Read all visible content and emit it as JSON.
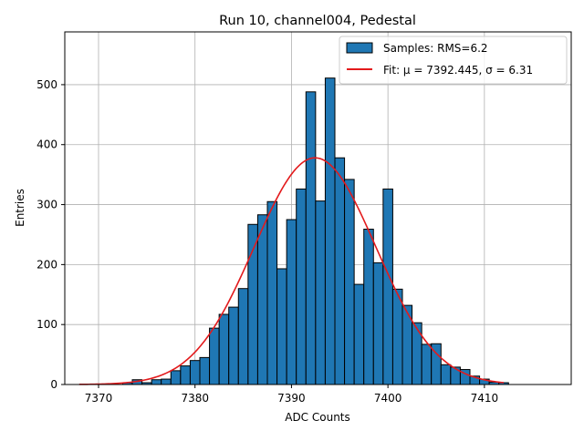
{
  "chart_data": {
    "type": "bar",
    "title": "Run 10, channel004, Pedestal",
    "xlabel": "ADC Counts",
    "ylabel": "Entries",
    "xlim": [
      7366.5,
      7419
    ],
    "ylim": [
      0,
      588
    ],
    "xticks": [
      7370,
      7380,
      7390,
      7400,
      7410
    ],
    "yticks": [
      0,
      100,
      200,
      300,
      400,
      500
    ],
    "grid": true,
    "legend_position": "upper-right",
    "bin_width": 1,
    "histogram": {
      "name": "Samples: RMS=6.2",
      "color": "#1f77b4",
      "bins": [
        {
          "x": 7373,
          "y": 3
        },
        {
          "x": 7374,
          "y": 8
        },
        {
          "x": 7375,
          "y": 3
        },
        {
          "x": 7376,
          "y": 8
        },
        {
          "x": 7377,
          "y": 9
        },
        {
          "x": 7378,
          "y": 23
        },
        {
          "x": 7379,
          "y": 31
        },
        {
          "x": 7380,
          "y": 40
        },
        {
          "x": 7381,
          "y": 45
        },
        {
          "x": 7382,
          "y": 94
        },
        {
          "x": 7383,
          "y": 117
        },
        {
          "x": 7384,
          "y": 129
        },
        {
          "x": 7385,
          "y": 160
        },
        {
          "x": 7386,
          "y": 267
        },
        {
          "x": 7387,
          "y": 283
        },
        {
          "x": 7388,
          "y": 305
        },
        {
          "x": 7389,
          "y": 193
        },
        {
          "x": 7390,
          "y": 275
        },
        {
          "x": 7391,
          "y": 326
        },
        {
          "x": 7392,
          "y": 488
        },
        {
          "x": 7393,
          "y": 306
        },
        {
          "x": 7394,
          "y": 511
        },
        {
          "x": 7395,
          "y": 378
        },
        {
          "x": 7396,
          "y": 342
        },
        {
          "x": 7397,
          "y": 167
        },
        {
          "x": 7398,
          "y": 259
        },
        {
          "x": 7399,
          "y": 203
        },
        {
          "x": 7400,
          "y": 326
        },
        {
          "x": 7401,
          "y": 159
        },
        {
          "x": 7402,
          "y": 132
        },
        {
          "x": 7403,
          "y": 103
        },
        {
          "x": 7404,
          "y": 67
        },
        {
          "x": 7405,
          "y": 68
        },
        {
          "x": 7406,
          "y": 33
        },
        {
          "x": 7407,
          "y": 29
        },
        {
          "x": 7408,
          "y": 25
        },
        {
          "x": 7409,
          "y": 14
        },
        {
          "x": 7410,
          "y": 9
        },
        {
          "x": 7411,
          "y": 4
        },
        {
          "x": 7412,
          "y": 3
        }
      ]
    },
    "fit": {
      "name": "Fit: μ = 7392.445, σ = 6.31",
      "color": "#e31a1c",
      "mu": 7392.445,
      "sigma": 6.31,
      "amplitude": 378,
      "x_range": [
        7368,
        7412
      ]
    }
  }
}
